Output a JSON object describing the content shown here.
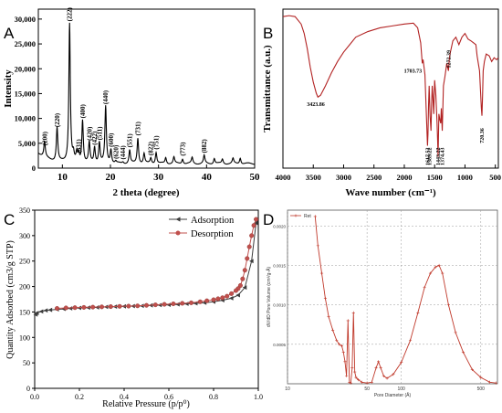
{
  "panels": {
    "a": {
      "letter": "A",
      "type": "line",
      "xlabel": "2 theta (degree)",
      "ylabel": "Intensity",
      "xlim": [
        5,
        50
      ],
      "ylim": [
        0,
        32000
      ],
      "xticks": [
        10,
        20,
        30,
        40,
        50
      ],
      "yticks": [
        0,
        5000,
        10000,
        15000,
        20000,
        25000,
        30000
      ],
      "ytick_labels": [
        "0",
        "5,000",
        "10,000",
        "15,000",
        "20,000",
        "25,000",
        "30,000"
      ],
      "line_color": "#000000",
      "peaks": [
        {
          "x": 6.3,
          "y": 4000,
          "label": "(200)"
        },
        {
          "x": 8.9,
          "y": 7700,
          "label": "(220)"
        },
        {
          "x": 11.5,
          "y": 29000,
          "label": "(222)"
        },
        {
          "x": 13.4,
          "y": 2500,
          "label": "(331)"
        },
        {
          "x": 14.2,
          "y": 9500,
          "label": "(400)"
        },
        {
          "x": 15.6,
          "y": 5000,
          "label": "(420)"
        },
        {
          "x": 16.7,
          "y": 4100,
          "label": "(422)"
        },
        {
          "x": 17.7,
          "y": 5100,
          "label": "(511)"
        },
        {
          "x": 19.0,
          "y": 12300,
          "label": "(440)"
        },
        {
          "x": 20.1,
          "y": 3700,
          "label": "(600)"
        },
        {
          "x": 21.1,
          "y": 1300,
          "label": "(620)"
        },
        {
          "x": 22.6,
          "y": 1200,
          "label": "(444)"
        },
        {
          "x": 24.0,
          "y": 3600,
          "label": "(551)"
        },
        {
          "x": 25.7,
          "y": 6000,
          "label": "(731)"
        },
        {
          "x": 28.4,
          "y": 2000,
          "label": "(822)"
        },
        {
          "x": 29.5,
          "y": 3200,
          "label": "(751)"
        },
        {
          "x": 35.0,
          "y": 1900,
          "label": "(773)"
        },
        {
          "x": 39.5,
          "y": 2500,
          "label": "(882)"
        }
      ]
    },
    "b": {
      "letter": "B",
      "type": "line",
      "xlabel": "Wave number (cm⁻¹)",
      "ylabel": "Transmittance (a.u.)",
      "xlim": [
        4000,
        450
      ],
      "xticks": [
        4000,
        3500,
        3000,
        2500,
        2000,
        1500,
        1000,
        500
      ],
      "line_color": "#b22222",
      "points": [
        [
          4000,
          97
        ],
        [
          3900,
          97.5
        ],
        [
          3800,
          97
        ],
        [
          3700,
          93
        ],
        [
          3650,
          88
        ],
        [
          3600,
          80
        ],
        [
          3550,
          70
        ],
        [
          3500,
          62
        ],
        [
          3450,
          56
        ],
        [
          3423.86,
          54
        ],
        [
          3380,
          55
        ],
        [
          3300,
          60
        ],
        [
          3200,
          67
        ],
        [
          3100,
          73
        ],
        [
          3000,
          78
        ],
        [
          2900,
          82
        ],
        [
          2800,
          86
        ],
        [
          2600,
          89
        ],
        [
          2400,
          91
        ],
        [
          2200,
          92
        ],
        [
          2000,
          93
        ],
        [
          1850,
          93.5
        ],
        [
          1780,
          91
        ],
        [
          1730,
          83
        ],
        [
          1703.73,
          72
        ],
        [
          1690,
          74
        ],
        [
          1660,
          66
        ],
        [
          1640,
          48
        ],
        [
          1620,
          30
        ],
        [
          1617.52,
          28
        ],
        [
          1610,
          34
        ],
        [
          1600,
          50
        ],
        [
          1590,
          60
        ],
        [
          1575,
          44
        ],
        [
          1560,
          36
        ],
        [
          1550,
          50
        ],
        [
          1540,
          60
        ],
        [
          1530,
          55
        ],
        [
          1515,
          45
        ],
        [
          1500,
          63
        ],
        [
          1480,
          55
        ],
        [
          1460,
          40
        ],
        [
          1450,
          30
        ],
        [
          1443.22,
          22
        ],
        [
          1430,
          45
        ],
        [
          1415,
          42
        ],
        [
          1400,
          40
        ],
        [
          1390,
          48
        ],
        [
          1374.43,
          36
        ],
        [
          1355,
          60
        ],
        [
          1330,
          65
        ],
        [
          1300,
          72
        ],
        [
          1272.39,
          68
        ],
        [
          1260,
          74
        ],
        [
          1240,
          78
        ],
        [
          1200,
          84
        ],
        [
          1150,
          86
        ],
        [
          1100,
          82
        ],
        [
          1050,
          86
        ],
        [
          1000,
          88
        ],
        [
          950,
          85
        ],
        [
          900,
          84
        ],
        [
          860,
          83
        ],
        [
          820,
          82
        ],
        [
          800,
          76
        ],
        [
          780,
          72
        ],
        [
          760,
          68
        ],
        [
          745,
          58
        ],
        [
          730,
          48
        ],
        [
          720.36,
          44
        ],
        [
          710,
          55
        ],
        [
          700,
          68
        ],
        [
          680,
          73
        ],
        [
          650,
          77
        ],
        [
          600,
          76
        ],
        [
          560,
          73
        ],
        [
          520,
          75
        ],
        [
          480,
          74
        ],
        [
          450,
          75
        ]
      ],
      "annotations": [
        {
          "x": 3423.86,
          "label": "3423.86"
        },
        {
          "x": 1703.73,
          "label": "1703.73"
        },
        {
          "x": 1617.52,
          "label": "1617.52"
        },
        {
          "x": 1589.22,
          "label": "1589.22"
        },
        {
          "x": 1443.22,
          "label": "1443.22"
        },
        {
          "x": 1374.43,
          "label": "1374.43"
        },
        {
          "x": 1272.39,
          "label": "1272.39"
        },
        {
          "x": 720.36,
          "label": "720.36"
        }
      ]
    },
    "c": {
      "letter": "C",
      "type": "line",
      "xlabel": "Relative Pressure (p/p⁰)",
      "ylabel": "Quantity Adsorbed (cm3/g STP)",
      "xlim": [
        0,
        1
      ],
      "ylim": [
        0,
        350
      ],
      "xticks": [
        0.0,
        0.2,
        0.4,
        0.6,
        0.8,
        1.0
      ],
      "xtick_labels": [
        "0.0",
        "0.2",
        "0.4",
        "0.6",
        "0.8",
        "1.0"
      ],
      "yticks": [
        0,
        50,
        100,
        150,
        200,
        250,
        300,
        350
      ],
      "legend_position": "top-right",
      "series": [
        {
          "name": "Adsorption",
          "color": "#3c3c3c",
          "marker": "triangle-left",
          "points": [
            [
              0.005,
              145
            ],
            [
              0.01,
              148
            ],
            [
              0.03,
              151
            ],
            [
              0.05,
              153
            ],
            [
              0.07,
              154
            ],
            [
              0.1,
              155
            ],
            [
              0.13,
              156
            ],
            [
              0.16,
              157
            ],
            [
              0.2,
              158
            ],
            [
              0.24,
              158.5
            ],
            [
              0.28,
              159
            ],
            [
              0.32,
              160
            ],
            [
              0.36,
              160.5
            ],
            [
              0.4,
              161
            ],
            [
              0.44,
              161.5
            ],
            [
              0.48,
              162
            ],
            [
              0.52,
              163
            ],
            [
              0.56,
              163.5
            ],
            [
              0.6,
              164
            ],
            [
              0.64,
              165
            ],
            [
              0.68,
              166
            ],
            [
              0.72,
              167
            ],
            [
              0.76,
              168
            ],
            [
              0.8,
              170
            ],
            [
              0.84,
              173
            ],
            [
              0.88,
              177
            ],
            [
              0.91,
              183
            ],
            [
              0.94,
              198
            ],
            [
              0.97,
              250
            ],
            [
              0.99,
              325
            ]
          ]
        },
        {
          "name": "Desorption",
          "color": "#c0504d",
          "marker": "circle",
          "points": [
            [
              0.99,
              332
            ],
            [
              0.98,
              320
            ],
            [
              0.97,
              300
            ],
            [
              0.96,
              278
            ],
            [
              0.95,
              255
            ],
            [
              0.94,
              232
            ],
            [
              0.93,
              215
            ],
            [
              0.92,
              202
            ],
            [
              0.91,
              196
            ],
            [
              0.9,
              192
            ],
            [
              0.88,
              186
            ],
            [
              0.86,
              181
            ],
            [
              0.84,
              178
            ],
            [
              0.82,
              176
            ],
            [
              0.8,
              174
            ],
            [
              0.77,
              172
            ],
            [
              0.74,
              170
            ],
            [
              0.7,
              168
            ],
            [
              0.66,
              167
            ],
            [
              0.62,
              166
            ],
            [
              0.58,
              165
            ],
            [
              0.54,
              164
            ],
            [
              0.5,
              163
            ],
            [
              0.46,
              162
            ],
            [
              0.42,
              161.5
            ],
            [
              0.38,
              161
            ],
            [
              0.34,
              160.5
            ],
            [
              0.3,
              160
            ],
            [
              0.26,
              159.5
            ],
            [
              0.22,
              159
            ],
            [
              0.18,
              158.5
            ],
            [
              0.14,
              158
            ],
            [
              0.1,
              157
            ]
          ]
        }
      ]
    },
    "d": {
      "letter": "D",
      "type": "line",
      "xlabel": "Pore Diameter (Å)",
      "ylabel": "dV/dD Pore Volume (cm³/g·Å)",
      "x_scale": "log",
      "xlim": [
        10,
        700
      ],
      "ylim": [
        0,
        0.0022
      ],
      "xticks": [
        10,
        50,
        100,
        500
      ],
      "xtick_labels": [
        "10",
        "50",
        "100",
        "500"
      ],
      "yticks": [
        0.0005,
        0.001,
        0.0015,
        0.002
      ],
      "ytick_labels": [
        "0.0005",
        "0.0010",
        "0.0015",
        "0.0020"
      ],
      "grid": true,
      "legend_position": "top-left",
      "series": [
        {
          "name": "Ret",
          "color": "#c0392b",
          "points": [
            [
              17.5,
              0.00212
            ],
            [
              18.5,
              0.00175
            ],
            [
              20,
              0.0014
            ],
            [
              21.5,
              0.00108
            ],
            [
              23,
              0.00085
            ],
            [
              25,
              0.00068
            ],
            [
              27,
              0.00055
            ],
            [
              28.5,
              0.0005
            ],
            [
              30,
              0.00048
            ],
            [
              31,
              0.0004
            ],
            [
              32,
              0.00028
            ],
            [
              33,
              0.0001
            ],
            [
              34,
              0.0008
            ],
            [
              35,
              2e-05
            ],
            [
              36,
              1e-05
            ],
            [
              37,
              0.0002
            ],
            [
              38,
              0.0009
            ],
            [
              39,
              0.00015
            ],
            [
              40,
              8e-05
            ],
            [
              42,
              5e-05
            ],
            [
              45,
              2e-05
            ],
            [
              50,
              1e-05
            ],
            [
              55,
              2e-05
            ],
            [
              60,
              0.0002
            ],
            [
              63,
              0.00028
            ],
            [
              66,
              0.0002
            ],
            [
              70,
              0.0001
            ],
            [
              75,
              7e-05
            ],
            [
              85,
              0.00012
            ],
            [
              100,
              0.00027
            ],
            [
              120,
              0.00055
            ],
            [
              140,
              0.0009
            ],
            [
              160,
              0.00122
            ],
            [
              180,
              0.0014
            ],
            [
              200,
              0.00148
            ],
            [
              215,
              0.0015
            ],
            [
              230,
              0.0014
            ],
            [
              260,
              0.001
            ],
            [
              300,
              0.00065
            ],
            [
              350,
              0.0004
            ],
            [
              420,
              0.00018
            ],
            [
              500,
              8e-05
            ],
            [
              600,
              2e-05
            ],
            [
              680,
              1e-05
            ]
          ]
        }
      ]
    }
  }
}
